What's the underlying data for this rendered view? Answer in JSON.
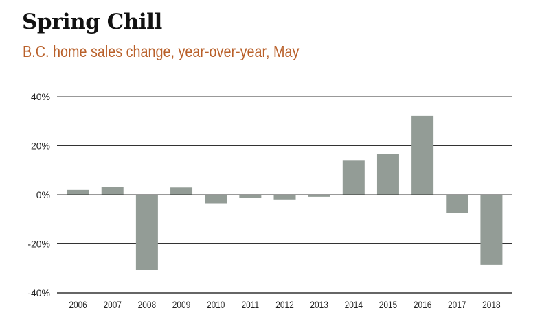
{
  "chart_data": {
    "type": "bar",
    "title": "Spring Chill",
    "subtitle": "B.C. home sales change, year-over-year, May",
    "xlabel": "",
    "ylabel": "",
    "categories": [
      "2006",
      "2007",
      "2008",
      "2009",
      "2010",
      "2011",
      "2012",
      "2013",
      "2014",
      "2015",
      "2016",
      "2017",
      "2018"
    ],
    "values": [
      2.0,
      3.1,
      -30.7,
      3.0,
      -3.5,
      -1.2,
      -1.9,
      -0.8,
      13.9,
      16.6,
      32.2,
      -7.5,
      -28.5
    ],
    "ylim": [
      -40,
      40
    ],
    "yticks": [
      40,
      20,
      0,
      -20,
      -40
    ],
    "ytick_labels": [
      "40%",
      "20%",
      "0%",
      "-20%",
      "-40%"
    ],
    "grid": true,
    "colors": {
      "bar": "#939c96",
      "subtitle": "#b9602a",
      "grid": "#333333"
    }
  }
}
